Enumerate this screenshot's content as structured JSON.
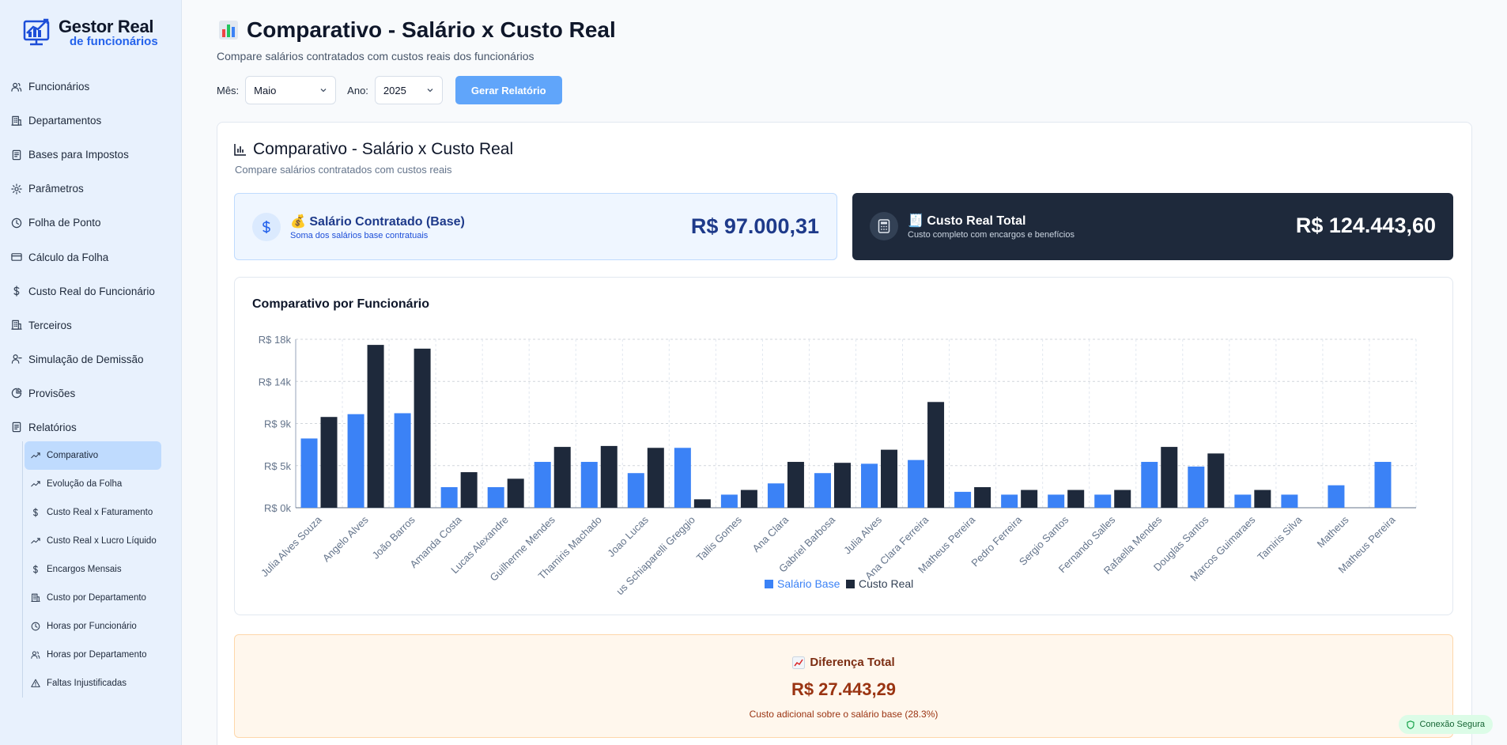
{
  "app": {
    "logo_line1": "Gestor Real",
    "logo_line2": "de funcionários"
  },
  "sidebar": {
    "items": [
      {
        "label": "Funcionários",
        "icon": "users-icon"
      },
      {
        "label": "Departamentos",
        "icon": "building-icon"
      },
      {
        "label": "Bases para Impostos",
        "icon": "receipt-icon"
      },
      {
        "label": "Parâmetros",
        "icon": "gear-icon"
      },
      {
        "label": "Folha de Ponto",
        "icon": "clock-icon"
      },
      {
        "label": "Cálculo da Folha",
        "icon": "card-icon"
      },
      {
        "label": "Custo Real do Funcionário",
        "icon": "dollar-icon"
      },
      {
        "label": "Terceiros",
        "icon": "building-icon"
      },
      {
        "label": "Simulação de Demissão",
        "icon": "user-minus-icon"
      },
      {
        "label": "Provisões",
        "icon": "pie-icon"
      },
      {
        "label": "Relatórios",
        "icon": "report-icon"
      }
    ],
    "sub_items": [
      {
        "label": "Comparativo",
        "icon": "trend-icon",
        "active": true
      },
      {
        "label": "Evolução da Folha",
        "icon": "trend-icon"
      },
      {
        "label": "Custo Real x Faturamento",
        "icon": "dollar-icon"
      },
      {
        "label": "Custo Real x Lucro Líquido",
        "icon": "trend-icon"
      },
      {
        "label": "Encargos Mensais",
        "icon": "dollar-icon"
      },
      {
        "label": "Custo por Departamento",
        "icon": "building-icon"
      },
      {
        "label": "Horas por Funcionário",
        "icon": "clock-icon"
      },
      {
        "label": "Horas por Departamento",
        "icon": "users-icon"
      },
      {
        "label": "Faltas Injustificadas",
        "icon": "warning-icon"
      }
    ]
  },
  "header": {
    "title": "Comparativo - Salário x Custo Real",
    "subtitle": "Compare salários contratados com custos reais dos funcionários"
  },
  "filters": {
    "month_label": "Mês:",
    "month_value": "Maio",
    "year_label": "Ano:",
    "year_value": "2025",
    "generate_label": "Gerar Relatório"
  },
  "report": {
    "title": "Comparativo - Salário x Custo Real",
    "subtitle": "Compare salários contratados com custos reais",
    "base": {
      "title": "💰 Salário Contratado (Base)",
      "desc": "Soma dos salários base contratuais",
      "value": "R$ 97.000,31"
    },
    "real": {
      "title": "🧾 Custo Real Total",
      "desc": "Custo completo com encargos e benefícios",
      "value": "R$ 124.443,60"
    },
    "chart_title": "Comparativo por Funcionário",
    "diff": {
      "title": "Diferença Total",
      "value": "R$ 27.443,29",
      "desc": "Custo adicional sobre o salário base (28.3%)"
    }
  },
  "status": {
    "secure_label": "Conexão Segura"
  },
  "colors": {
    "salario": "#3b82f6",
    "custo": "#1e293b",
    "accent": "#60a5fa"
  },
  "chart_data": {
    "type": "bar",
    "ylim": [
      0,
      18000
    ],
    "yticks": [
      0,
      4500,
      9000,
      13500,
      18000
    ],
    "ytick_labels": [
      "R$ 0k",
      "R$ 5k",
      "R$ 9k",
      "R$ 14k",
      "R$ 18k"
    ],
    "grid": true,
    "legend_position": "bottom",
    "categories": [
      "Julia Alves Souza",
      "Angelo Alves",
      "João Barros",
      "Amanda Costa",
      "Lucas Alexandre",
      "Guilherme Mendes",
      "Thamiris Machado",
      "Joao Lucas",
      "us Schiaparelli Greggio",
      "Tallis Gomes",
      "Ana Clara",
      "Gabriel Barbosa",
      "Julia Alves",
      "Ana Clara Ferreira",
      "Matheus Pereira",
      "Pedro Ferreira",
      "Sergio Santos",
      "Fernando Salles",
      "Rafaella Mendes",
      "Douglas Santos",
      "Marcos Guimaraes",
      "Tamiris Silva",
      "Matheus",
      "Matheus Pereira"
    ],
    "series": [
      {
        "name": "Salário Base",
        "values": [
          7400,
          10000,
          10100,
          2200,
          2200,
          4900,
          4900,
          3700,
          6400,
          1400,
          2600,
          3700,
          4700,
          5100,
          1700,
          1400,
          1400,
          1400,
          4900,
          4400,
          1400,
          1400,
          2400,
          4900
        ]
      },
      {
        "name": "Custo Real",
        "values": [
          9700,
          17400,
          17000,
          3800,
          3100,
          6500,
          6600,
          6400,
          900,
          1900,
          4900,
          4800,
          6200,
          11300,
          2200,
          1900,
          1900,
          1900,
          6500,
          5800,
          1900,
          0,
          0,
          0
        ]
      }
    ]
  }
}
